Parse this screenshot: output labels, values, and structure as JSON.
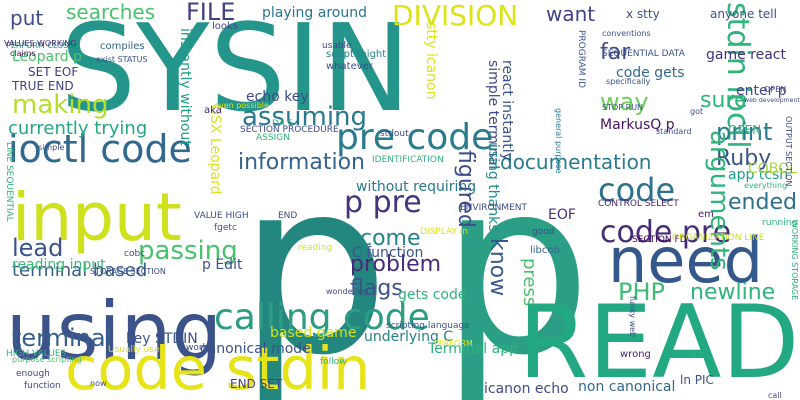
{
  "words": [
    {
      "text": "SYSIN",
      "color": "#23958a"
    },
    {
      "text": "p",
      "color": "#23877f"
    },
    {
      "text": "p",
      "color": "#2b9f86"
    },
    {
      "text": "READ",
      "color": "#23a884"
    },
    {
      "text": "input",
      "color": "#cfe11c"
    },
    {
      "text": "using",
      "color": "#3b528b"
    },
    {
      "text": "code stdin",
      "color": "#e6e418"
    },
    {
      "text": "need",
      "color": "#34578c"
    },
    {
      "text": "ioctl code",
      "color": "#30688e"
    },
    {
      "text": "pre code",
      "color": "#2a7b8e"
    },
    {
      "text": "calling code",
      "color": "#2c9d84"
    },
    {
      "text": "code pre",
      "color": "#472c7a"
    },
    {
      "text": "stdin ioctl",
      "color": "#2fb47c"
    },
    {
      "text": "DIVISION",
      "color": "#dde318"
    },
    {
      "text": "FILE",
      "color": "#404387"
    },
    {
      "text": "searches",
      "color": "#4ac16d"
    },
    {
      "text": "put",
      "color": "#3e4c8a"
    },
    {
      "text": "want",
      "color": "#404387"
    },
    {
      "text": "far",
      "color": "#3e4a89"
    },
    {
      "text": "sure",
      "color": "#2fb47c"
    },
    {
      "text": "print",
      "color": "#2a788e"
    },
    {
      "text": "way",
      "color": "#6ece58"
    },
    {
      "text": "Ruby",
      "color": "#3a548c"
    },
    {
      "text": "arguments",
      "color": "#2fb47c"
    },
    {
      "text": "making",
      "color": "#b5de2b"
    },
    {
      "text": "assuming",
      "color": "#2a788e"
    },
    {
      "text": "figured",
      "color": "#3e4c8a"
    },
    {
      "text": "code",
      "color": "#2d718e"
    },
    {
      "text": "documentation",
      "color": "#297b8e"
    },
    {
      "text": "p pre",
      "color": "#46337f"
    },
    {
      "text": "information",
      "color": "#33628d"
    },
    {
      "text": "currently trying",
      "color": "#23a884"
    },
    {
      "text": "come",
      "color": "#26828e"
    },
    {
      "text": "know",
      "color": "#38598c"
    },
    {
      "text": "press",
      "color": "#4ac16d"
    },
    {
      "text": "problem",
      "color": "#482878"
    },
    {
      "text": "passing",
      "color": "#4ac16d"
    },
    {
      "text": "flags",
      "color": "#3b528b"
    },
    {
      "text": "PHP",
      "color": "#3dbc74"
    },
    {
      "text": "newline",
      "color": "#2fb47c"
    },
    {
      "text": "ended",
      "color": "#2d708e"
    },
    {
      "text": "lead",
      "color": "#3b528b"
    },
    {
      "text": "terminal",
      "color": "#355f8d"
    },
    {
      "text": "terminal based",
      "color": "#355e8d"
    },
    {
      "text": "MarkusQ p",
      "color": "#471063"
    },
    {
      "text": "app tcsh",
      "color": "#1fa088"
    },
    {
      "text": "x stty",
      "color": "#3b518b"
    },
    {
      "text": "anyone tell",
      "color": "#3c4f8a"
    },
    {
      "text": "playing around",
      "color": "#2a768e"
    },
    {
      "text": "echo key",
      "color": "#3e4a89"
    },
    {
      "text": "C function",
      "color": "#39568c"
    },
    {
      "text": "gets code",
      "color": "#2fb47c"
    },
    {
      "text": "code gets",
      "color": "#31688e"
    },
    {
      "text": "game react",
      "color": "#46307e"
    },
    {
      "text": "enter p",
      "color": "#414487"
    },
    {
      "text": "reading input",
      "color": "#3bbb75"
    },
    {
      "text": "based game",
      "color": "#d2e21b"
    },
    {
      "text": "underlying C",
      "color": "#26828e"
    },
    {
      "text": "key STDIN",
      "color": "#3b528b"
    },
    {
      "text": "canonical mode",
      "color": "#3b528b"
    },
    {
      "text": "Terminal app",
      "color": "#2db27d"
    },
    {
      "text": "icanon echo",
      "color": "#3e4a89"
    },
    {
      "text": "non canonical",
      "color": "#31688e"
    },
    {
      "text": "END SET",
      "color": "#433e85"
    },
    {
      "text": "COBOL",
      "color": "#a8db34"
    },
    {
      "text": "OPEN",
      "color": "#2fb47c"
    },
    {
      "text": "TRUE END",
      "color": "#414487"
    },
    {
      "text": "SET EOF",
      "color": "#453882"
    },
    {
      "text": "Leopard p",
      "color": "#4ac16d"
    },
    {
      "text": "OSX Leopard",
      "color": "#dde318"
    },
    {
      "text": "without requiring",
      "color": "#2a788e"
    },
    {
      "text": "simple terminal",
      "color": "#3e4a89"
    },
    {
      "text": "react instantly",
      "color": "#3b528b"
    },
    {
      "text": "using thanks",
      "color": "#21918c"
    },
    {
      "text": "stty icanon",
      "color": "#dde318"
    },
    {
      "text": "instantly without",
      "color": "#1fa088"
    },
    {
      "text": "p Edit",
      "color": "#3b528b"
    },
    {
      "text": "EOF",
      "color": "#46307e"
    },
    {
      "text": "x",
      "color": "#2fb47c"
    },
    {
      "text": "em",
      "color": "#482475"
    },
    {
      "text": "ln PIC",
      "color": "#3b528b"
    },
    {
      "text": "PERFORM CLOSE",
      "color": "#26828e"
    },
    {
      "text": "VALUES WORKING",
      "color": "#482878"
    },
    {
      "text": "compiles",
      "color": "#33638d"
    },
    {
      "text": "claims",
      "color": "#471063"
    },
    {
      "text": "exist STATUS",
      "color": "#3b528b"
    },
    {
      "text": "looks",
      "color": "#3e4a89"
    },
    {
      "text": "usable",
      "color": "#414487"
    },
    {
      "text": "script might",
      "color": "#26828e"
    },
    {
      "text": "whatever",
      "color": "#3b528b"
    },
    {
      "text": "DA 5",
      "color": "#2fb47c"
    },
    {
      "text": "aka",
      "color": "#482878"
    },
    {
      "text": "even possible",
      "color": "#dde318"
    },
    {
      "text": "ASSIGN",
      "color": "#2fb47c"
    },
    {
      "text": "SECTION PROCEDURE",
      "color": "#3e4a89"
    },
    {
      "text": "stdout",
      "color": "#3e4a89"
    },
    {
      "text": "IDENTIFICATION",
      "color": "#2fb47c"
    },
    {
      "text": "ENVIRONMENT",
      "color": "#3e4a89"
    },
    {
      "text": "good",
      "color": "#3e4a89"
    },
    {
      "text": "libcob",
      "color": "#33638d"
    },
    {
      "text": "CONTROL SELECT",
      "color": "#481f70"
    },
    {
      "text": "SECTION FD",
      "color": "#440154"
    },
    {
      "text": "ORGANIZATION LINE",
      "color": "#c2df23"
    },
    {
      "text": "running",
      "color": "#2fb47c"
    },
    {
      "text": "WORKING STORAGE",
      "color": "#2db27d"
    },
    {
      "text": "STORAGE SECTION",
      "color": "#3e4a89"
    },
    {
      "text": "DISPLAY in",
      "color": "#dde318"
    },
    {
      "text": "reading",
      "color": "#dde318"
    },
    {
      "text": "wondering",
      "color": "#3e4a89"
    },
    {
      "text": "scripting language",
      "color": "#3b528b"
    },
    {
      "text": "VALUE HIGH",
      "color": "#3e4a89"
    },
    {
      "text": "END",
      "color": "#3e4a89"
    },
    {
      "text": "fgetc",
      "color": "#3b528b"
    },
    {
      "text": "cobc",
      "color": "#3e4a89"
    },
    {
      "text": "HIGH VALUES",
      "color": "#2fb47c"
    },
    {
      "text": "purpose scripting",
      "color": "#4ac16d"
    },
    {
      "text": "Usually used",
      "color": "#dde318"
    },
    {
      "text": "work",
      "color": "#3e4a89"
    },
    {
      "text": "follow",
      "color": "#2fb47c"
    },
    {
      "text": "enough",
      "color": "#3e4a89"
    },
    {
      "text": "function",
      "color": "#3e4a89"
    },
    {
      "text": "now",
      "color": "#3b528b"
    },
    {
      "text": "call",
      "color": "#3e4a89"
    },
    {
      "text": "wrong",
      "color": "#481f70"
    },
    {
      "text": "funky web",
      "color": "#3b528b"
    },
    {
      "text": "PERFORM",
      "color": "#dde318"
    },
    {
      "text": "general purpose",
      "color": "#2a788e"
    },
    {
      "text": "web development",
      "color": "#3e4a89"
    },
    {
      "text": "OUTPUT SECTION",
      "color": "#3e4a89"
    },
    {
      "text": "everything",
      "color": "#2fb47c"
    },
    {
      "text": "got",
      "color": "#3e4a89"
    },
    {
      "text": "standard",
      "color": "#3b528b"
    },
    {
      "text": "specifically",
      "color": "#3b528b"
    },
    {
      "text": "STOP RUN",
      "color": "#3b528b"
    },
    {
      "text": "PROGRAM ID",
      "color": "#3b528b"
    },
    {
      "text": "SEQUENTIAL DATA",
      "color": "#3b528b"
    },
    {
      "text": "conventions",
      "color": "#3b528b"
    },
    {
      "text": "LINE SEQUENTIAL",
      "color": "#2fb47c"
    },
    {
      "text": "simple",
      "color": "#3e4a89"
    },
    {
      "text": "OPEN",
      "color": "#3e4a89"
    }
  ]
}
